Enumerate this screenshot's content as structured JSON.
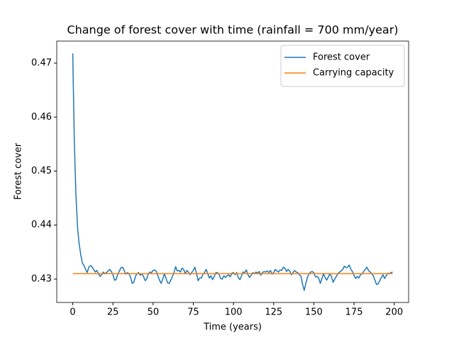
{
  "chart_data": {
    "type": "line",
    "title": "Change of forest cover with time (rainfall = 700 mm/year)",
    "x_label": "Time (years)",
    "y_label": "Forest cover",
    "xlim": [
      -9.95,
      208.95
    ],
    "xticks": [
      0,
      25,
      50,
      75,
      100,
      125,
      150,
      175,
      200
    ],
    "ylim": [
      0.42567,
      0.47407
    ],
    "yticks": [
      0.43,
      0.44,
      0.45,
      0.46,
      0.47
    ],
    "legend": "upper right",
    "series": [
      {
        "name": "Forest cover",
        "color": "#1f77b4",
        "x": [
          0,
          1,
          2,
          3,
          4,
          5,
          6,
          7,
          8,
          9,
          10,
          11,
          12,
          13,
          14,
          15,
          16,
          17,
          18,
          19,
          20,
          21,
          22,
          23,
          24,
          25,
          26,
          27,
          28,
          29,
          30,
          31,
          32,
          33,
          34,
          35,
          36,
          37,
          38,
          39,
          40,
          41,
          42,
          43,
          44,
          45,
          46,
          47,
          48,
          49,
          50,
          51,
          52,
          53,
          54,
          55,
          56,
          57,
          58,
          59,
          60,
          61,
          62,
          63,
          64,
          65,
          66,
          67,
          68,
          69,
          70,
          71,
          72,
          73,
          74,
          75,
          76,
          77,
          78,
          79,
          80,
          81,
          82,
          83,
          84,
          85,
          86,
          87,
          88,
          89,
          90,
          91,
          92,
          93,
          94,
          95,
          96,
          97,
          98,
          99,
          100,
          101,
          102,
          103,
          104,
          105,
          106,
          107,
          108,
          109,
          110,
          111,
          112,
          113,
          114,
          115,
          116,
          117,
          118,
          119,
          120,
          121,
          122,
          123,
          124,
          125,
          126,
          127,
          128,
          129,
          130,
          131,
          132,
          133,
          134,
          135,
          136,
          137,
          138,
          139,
          140,
          141,
          142,
          143,
          144,
          145,
          146,
          147,
          148,
          149,
          150,
          151,
          152,
          153,
          154,
          155,
          156,
          157,
          158,
          159,
          160,
          161,
          162,
          163,
          164,
          165,
          166,
          167,
          168,
          169,
          170,
          171,
          172,
          173,
          174,
          175,
          176,
          177,
          178,
          179,
          180,
          181,
          182,
          183,
          184,
          185,
          186,
          187,
          188,
          189,
          190,
          191,
          192,
          193,
          194,
          195,
          196,
          197,
          198,
          199
        ],
        "values": [
          0.4718,
          0.4552,
          0.4455,
          0.4395,
          0.4365,
          0.4345,
          0.433,
          0.4325,
          0.4318,
          0.4312,
          0.4322,
          0.4325,
          0.4323,
          0.4318,
          0.4313,
          0.4316,
          0.431,
          0.4305,
          0.4308,
          0.4313,
          0.431,
          0.4312,
          0.4315,
          0.4318,
          0.4314,
          0.4308,
          0.4298,
          0.4299,
          0.4309,
          0.4315,
          0.4321,
          0.4322,
          0.4316,
          0.4309,
          0.4312,
          0.431,
          0.4303,
          0.4292,
          0.4294,
          0.4305,
          0.431,
          0.4312,
          0.4307,
          0.431,
          0.4305,
          0.4297,
          0.43,
          0.431,
          0.4313,
          0.4312,
          0.4316,
          0.4317,
          0.4314,
          0.4306,
          0.4298,
          0.4292,
          0.43,
          0.431,
          0.4302,
          0.4293,
          0.4292,
          0.4298,
          0.4305,
          0.4312,
          0.4323,
          0.4315,
          0.4316,
          0.4313,
          0.432,
          0.4318,
          0.431,
          0.4316,
          0.4313,
          0.4308,
          0.4312,
          0.4316,
          0.4322,
          0.4311,
          0.4297,
          0.4302,
          0.4302,
          0.4309,
          0.4312,
          0.4318,
          0.431,
          0.4302,
          0.4306,
          0.4299,
          0.4305,
          0.4312,
          0.4312,
          0.4309,
          0.4301,
          0.43,
          0.4306,
          0.4303,
          0.4306,
          0.4308,
          0.4304,
          0.4311,
          0.4312,
          0.4308,
          0.4312,
          0.4303,
          0.4299,
          0.4306,
          0.4313,
          0.4312,
          0.4317,
          0.4308,
          0.4303,
          0.4307,
          0.4312,
          0.431,
          0.4313,
          0.4311,
          0.4314,
          0.4307,
          0.4312,
          0.4314,
          0.4313,
          0.4315,
          0.4312,
          0.4316,
          0.4309,
          0.4312,
          0.4318,
          0.4315,
          0.4313,
          0.4317,
          0.4316,
          0.4322,
          0.432,
          0.4314,
          0.4318,
          0.4315,
          0.4308,
          0.4312,
          0.4316,
          0.4313,
          0.4312,
          0.4308,
          0.4305,
          0.429,
          0.4279,
          0.4292,
          0.4303,
          0.431,
          0.4313,
          0.4314,
          0.4312,
          0.4304,
          0.4305,
          0.4302,
          0.4292,
          0.4301,
          0.431,
          0.4303,
          0.4298,
          0.4304,
          0.431,
          0.4304,
          0.4294,
          0.43,
          0.4305,
          0.431,
          0.4313,
          0.4315,
          0.4318,
          0.4324,
          0.4321,
          0.4322,
          0.4326,
          0.4318,
          0.4314,
          0.4307,
          0.4301,
          0.4305,
          0.4302,
          0.4308,
          0.431,
          0.4314,
          0.4318,
          0.4322,
          0.4316,
          0.4313,
          0.431,
          0.4306,
          0.4298,
          0.429,
          0.4291,
          0.4297,
          0.4303,
          0.4308,
          0.4301,
          0.4306,
          0.4311,
          0.431,
          0.4312,
          0.4313
        ]
      },
      {
        "name": "Carrying capacity",
        "color": "#ff7f0e",
        "x": [
          0,
          199
        ],
        "values": [
          0.431,
          0.431
        ]
      }
    ]
  }
}
